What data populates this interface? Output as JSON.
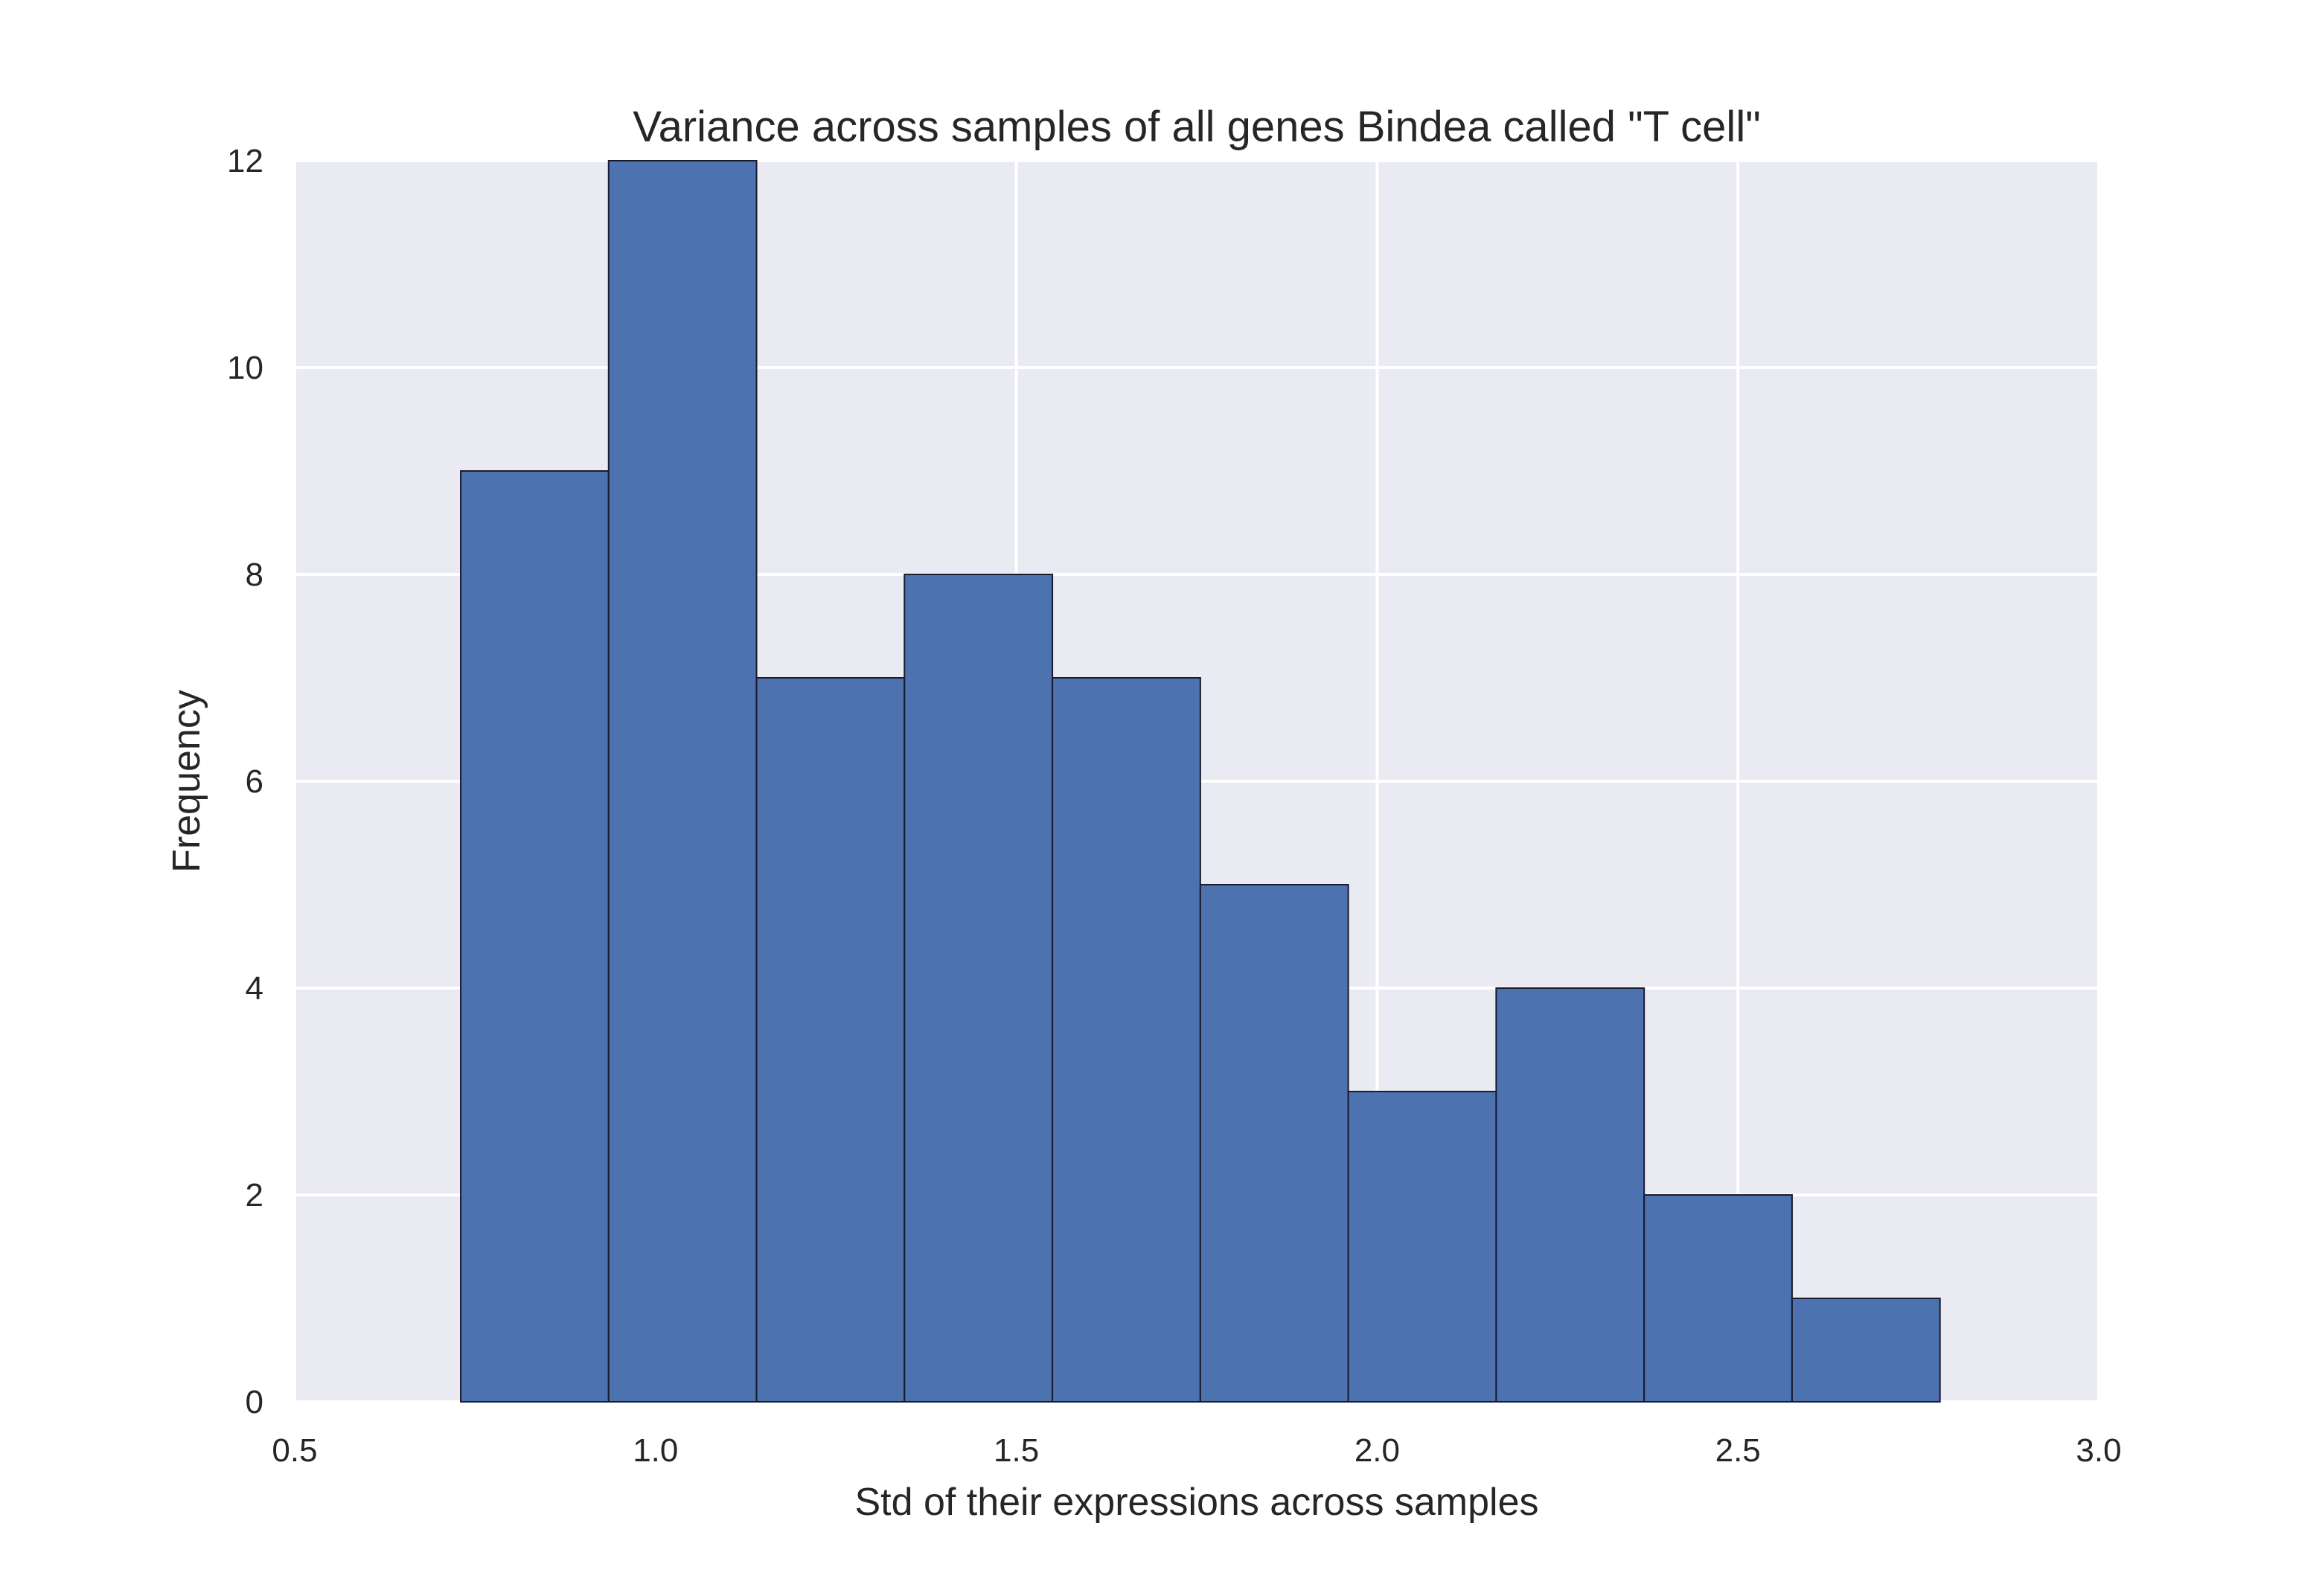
{
  "chart_data": {
    "type": "bar",
    "title": "Variance across samples of all genes Bindea called \"T cell\"",
    "xlabel": "Std of their expressions across samples",
    "ylabel": "Frequency",
    "xlim": [
      0.5,
      3.0
    ],
    "ylim": [
      0,
      12
    ],
    "xticks": [
      "0.5",
      "1.0",
      "1.5",
      "2.0",
      "2.5",
      "3.0"
    ],
    "yticks": [
      "0",
      "2",
      "4",
      "6",
      "8",
      "10",
      "12"
    ],
    "bins": [
      {
        "x0": 0.73,
        "x1": 0.935,
        "value": 9
      },
      {
        "x0": 0.935,
        "x1": 1.14,
        "value": 12
      },
      {
        "x0": 1.14,
        "x1": 1.345,
        "value": 7
      },
      {
        "x0": 1.345,
        "x1": 1.55,
        "value": 8
      },
      {
        "x0": 1.55,
        "x1": 1.755,
        "value": 7
      },
      {
        "x0": 1.755,
        "x1": 1.96,
        "value": 5
      },
      {
        "x0": 1.96,
        "x1": 2.165,
        "value": 3
      },
      {
        "x0": 2.165,
        "x1": 2.37,
        "value": 4
      },
      {
        "x0": 2.37,
        "x1": 2.575,
        "value": 2
      },
      {
        "x0": 2.575,
        "x1": 2.78,
        "value": 1
      }
    ],
    "grid": true,
    "colors": {
      "bar": "#4c72b0",
      "bar_edge": "#1a1a2e",
      "plot_bg": "#eaeaf2",
      "grid": "#ffffff"
    }
  }
}
